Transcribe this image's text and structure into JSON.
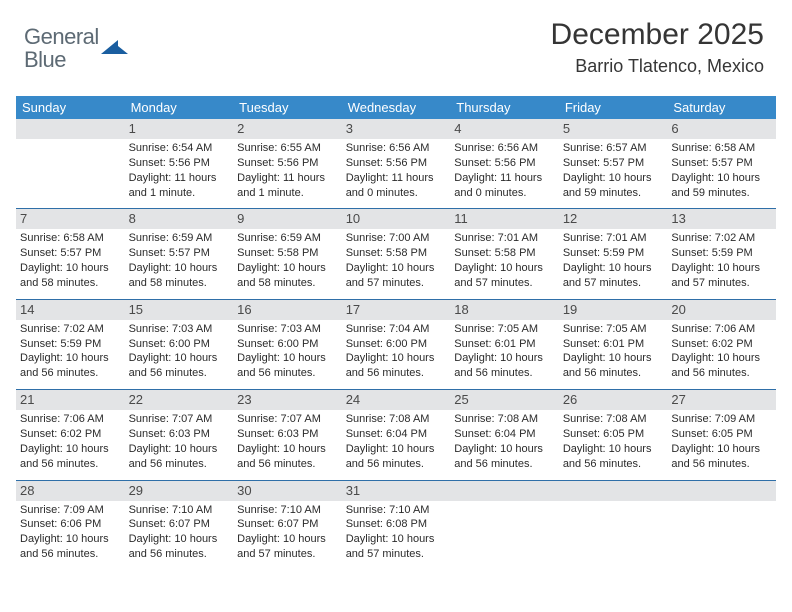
{
  "brand": {
    "name1": "General",
    "name2": "Blue"
  },
  "title": "December 2025",
  "location": "Barrio Tlatenco, Mexico",
  "colors": {
    "header_bg": "#3789c9",
    "header_text": "#ffffff",
    "rule": "#2f6fa8",
    "daynum_bg": "#e3e4e6",
    "text": "#2b2b2b",
    "logo_text": "#5d6a74",
    "logo_shape": "#1a5ea0"
  },
  "typography": {
    "title_fontsize": 30,
    "location_fontsize": 18,
    "daylabel_fontsize": 13,
    "body_fontsize": 11
  },
  "day_labels": [
    "Sunday",
    "Monday",
    "Tuesday",
    "Wednesday",
    "Thursday",
    "Friday",
    "Saturday"
  ],
  "weeks": [
    [
      null,
      {
        "n": "1",
        "sr": "Sunrise: 6:54 AM",
        "ss": "Sunset: 5:56 PM",
        "d1": "Daylight: 11 hours",
        "d2": "and 1 minute."
      },
      {
        "n": "2",
        "sr": "Sunrise: 6:55 AM",
        "ss": "Sunset: 5:56 PM",
        "d1": "Daylight: 11 hours",
        "d2": "and 1 minute."
      },
      {
        "n": "3",
        "sr": "Sunrise: 6:56 AM",
        "ss": "Sunset: 5:56 PM",
        "d1": "Daylight: 11 hours",
        "d2": "and 0 minutes."
      },
      {
        "n": "4",
        "sr": "Sunrise: 6:56 AM",
        "ss": "Sunset: 5:56 PM",
        "d1": "Daylight: 11 hours",
        "d2": "and 0 minutes."
      },
      {
        "n": "5",
        "sr": "Sunrise: 6:57 AM",
        "ss": "Sunset: 5:57 PM",
        "d1": "Daylight: 10 hours",
        "d2": "and 59 minutes."
      },
      {
        "n": "6",
        "sr": "Sunrise: 6:58 AM",
        "ss": "Sunset: 5:57 PM",
        "d1": "Daylight: 10 hours",
        "d2": "and 59 minutes."
      }
    ],
    [
      {
        "n": "7",
        "sr": "Sunrise: 6:58 AM",
        "ss": "Sunset: 5:57 PM",
        "d1": "Daylight: 10 hours",
        "d2": "and 58 minutes."
      },
      {
        "n": "8",
        "sr": "Sunrise: 6:59 AM",
        "ss": "Sunset: 5:57 PM",
        "d1": "Daylight: 10 hours",
        "d2": "and 58 minutes."
      },
      {
        "n": "9",
        "sr": "Sunrise: 6:59 AM",
        "ss": "Sunset: 5:58 PM",
        "d1": "Daylight: 10 hours",
        "d2": "and 58 minutes."
      },
      {
        "n": "10",
        "sr": "Sunrise: 7:00 AM",
        "ss": "Sunset: 5:58 PM",
        "d1": "Daylight: 10 hours",
        "d2": "and 57 minutes."
      },
      {
        "n": "11",
        "sr": "Sunrise: 7:01 AM",
        "ss": "Sunset: 5:58 PM",
        "d1": "Daylight: 10 hours",
        "d2": "and 57 minutes."
      },
      {
        "n": "12",
        "sr": "Sunrise: 7:01 AM",
        "ss": "Sunset: 5:59 PM",
        "d1": "Daylight: 10 hours",
        "d2": "and 57 minutes."
      },
      {
        "n": "13",
        "sr": "Sunrise: 7:02 AM",
        "ss": "Sunset: 5:59 PM",
        "d1": "Daylight: 10 hours",
        "d2": "and 57 minutes."
      }
    ],
    [
      {
        "n": "14",
        "sr": "Sunrise: 7:02 AM",
        "ss": "Sunset: 5:59 PM",
        "d1": "Daylight: 10 hours",
        "d2": "and 56 minutes."
      },
      {
        "n": "15",
        "sr": "Sunrise: 7:03 AM",
        "ss": "Sunset: 6:00 PM",
        "d1": "Daylight: 10 hours",
        "d2": "and 56 minutes."
      },
      {
        "n": "16",
        "sr": "Sunrise: 7:03 AM",
        "ss": "Sunset: 6:00 PM",
        "d1": "Daylight: 10 hours",
        "d2": "and 56 minutes."
      },
      {
        "n": "17",
        "sr": "Sunrise: 7:04 AM",
        "ss": "Sunset: 6:00 PM",
        "d1": "Daylight: 10 hours",
        "d2": "and 56 minutes."
      },
      {
        "n": "18",
        "sr": "Sunrise: 7:05 AM",
        "ss": "Sunset: 6:01 PM",
        "d1": "Daylight: 10 hours",
        "d2": "and 56 minutes."
      },
      {
        "n": "19",
        "sr": "Sunrise: 7:05 AM",
        "ss": "Sunset: 6:01 PM",
        "d1": "Daylight: 10 hours",
        "d2": "and 56 minutes."
      },
      {
        "n": "20",
        "sr": "Sunrise: 7:06 AM",
        "ss": "Sunset: 6:02 PM",
        "d1": "Daylight: 10 hours",
        "d2": "and 56 minutes."
      }
    ],
    [
      {
        "n": "21",
        "sr": "Sunrise: 7:06 AM",
        "ss": "Sunset: 6:02 PM",
        "d1": "Daylight: 10 hours",
        "d2": "and 56 minutes."
      },
      {
        "n": "22",
        "sr": "Sunrise: 7:07 AM",
        "ss": "Sunset: 6:03 PM",
        "d1": "Daylight: 10 hours",
        "d2": "and 56 minutes."
      },
      {
        "n": "23",
        "sr": "Sunrise: 7:07 AM",
        "ss": "Sunset: 6:03 PM",
        "d1": "Daylight: 10 hours",
        "d2": "and 56 minutes."
      },
      {
        "n": "24",
        "sr": "Sunrise: 7:08 AM",
        "ss": "Sunset: 6:04 PM",
        "d1": "Daylight: 10 hours",
        "d2": "and 56 minutes."
      },
      {
        "n": "25",
        "sr": "Sunrise: 7:08 AM",
        "ss": "Sunset: 6:04 PM",
        "d1": "Daylight: 10 hours",
        "d2": "and 56 minutes."
      },
      {
        "n": "26",
        "sr": "Sunrise: 7:08 AM",
        "ss": "Sunset: 6:05 PM",
        "d1": "Daylight: 10 hours",
        "d2": "and 56 minutes."
      },
      {
        "n": "27",
        "sr": "Sunrise: 7:09 AM",
        "ss": "Sunset: 6:05 PM",
        "d1": "Daylight: 10 hours",
        "d2": "and 56 minutes."
      }
    ],
    [
      {
        "n": "28",
        "sr": "Sunrise: 7:09 AM",
        "ss": "Sunset: 6:06 PM",
        "d1": "Daylight: 10 hours",
        "d2": "and 56 minutes."
      },
      {
        "n": "29",
        "sr": "Sunrise: 7:10 AM",
        "ss": "Sunset: 6:07 PM",
        "d1": "Daylight: 10 hours",
        "d2": "and 56 minutes."
      },
      {
        "n": "30",
        "sr": "Sunrise: 7:10 AM",
        "ss": "Sunset: 6:07 PM",
        "d1": "Daylight: 10 hours",
        "d2": "and 57 minutes."
      },
      {
        "n": "31",
        "sr": "Sunrise: 7:10 AM",
        "ss": "Sunset: 6:08 PM",
        "d1": "Daylight: 10 hours",
        "d2": "and 57 minutes."
      },
      null,
      null,
      null
    ]
  ]
}
